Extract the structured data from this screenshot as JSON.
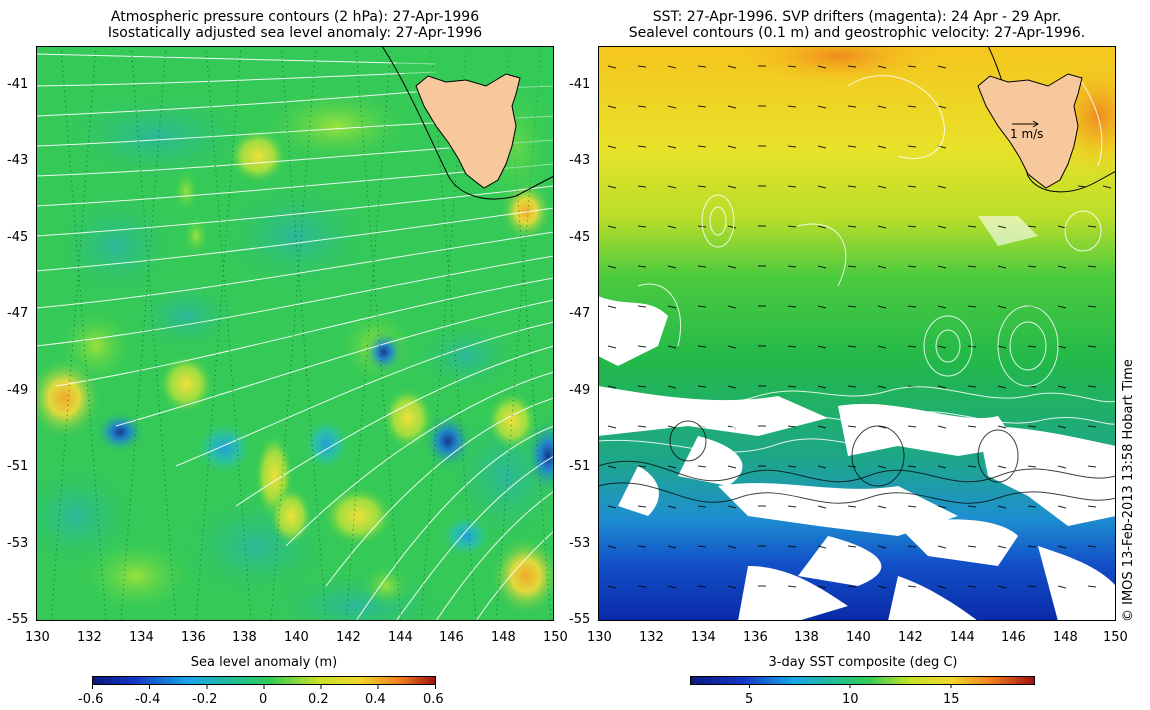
{
  "left_panel": {
    "title_line1": "Atmospheric pressure contours (2 hPa): 27-Apr-1996",
    "title_line2": "Isostatically adjusted sea level anomaly: 27-Apr-1996",
    "lat_ticks": [
      "-41",
      "-43",
      "-45",
      "-47",
      "-49",
      "-51",
      "-53",
      "-55"
    ],
    "lon_ticks": [
      "130",
      "132",
      "134",
      "136",
      "138",
      "140",
      "142",
      "144",
      "146",
      "148",
      "150"
    ],
    "colorbar": {
      "title": "Sea level anomaly (m)",
      "ticks": [
        "-0.6",
        "-0.4",
        "-0.2",
        "0",
        "0.2",
        "0.4",
        "0.6"
      ]
    }
  },
  "right_panel": {
    "title_line1": "SST: 27-Apr-1996. SVP drifters (magenta): 24 Apr - 29 Apr.",
    "title_line2": "Sealevel contours (0.1 m) and geostrophic velocity: 27-Apr-1996.",
    "lat_ticks": [
      "-41",
      "-43",
      "-45",
      "-47",
      "-49",
      "-51",
      "-53",
      "-55"
    ],
    "lon_ticks": [
      "130",
      "132",
      "134",
      "136",
      "138",
      "140",
      "142",
      "144",
      "146",
      "148",
      "150"
    ],
    "velocity_scale_label": "1 m/s",
    "colorbar": {
      "title": "3-day SST composite (deg C)",
      "ticks": [
        "5",
        "10",
        "15"
      ]
    }
  },
  "credit": "© IMOS 13-Feb-2013 13:58 Hobart Time",
  "colors": {
    "land": "#f7c89b",
    "sla_background": "#33cc55",
    "sst_warm": "#f2c81e",
    "sst_cold": "#0b2fc2"
  }
}
